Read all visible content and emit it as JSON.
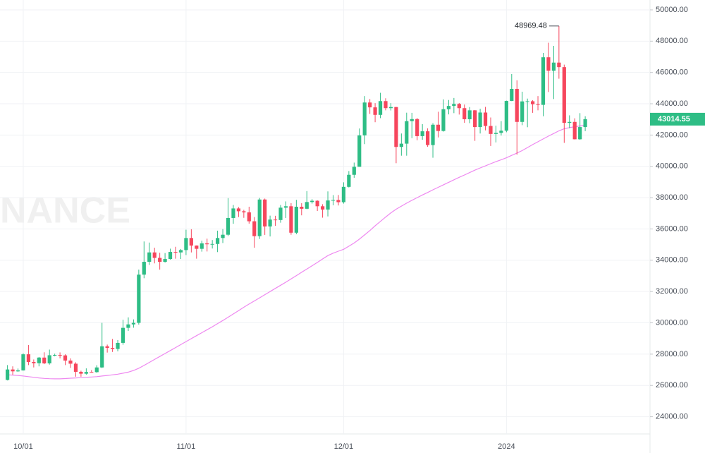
{
  "chart_data": {
    "type": "candlestick",
    "watermark": "NANCE",
    "categories": [
      null,
      null,
      null,
      "10/01",
      null,
      null,
      null,
      null,
      null,
      null,
      null,
      null,
      null,
      null,
      null,
      null,
      null,
      null,
      null,
      null,
      null,
      null,
      null,
      null,
      null,
      null,
      null,
      null,
      null,
      null,
      null,
      null,
      null,
      null,
      "11/01",
      null,
      null,
      null,
      null,
      null,
      null,
      null,
      null,
      null,
      null,
      null,
      null,
      null,
      null,
      null,
      null,
      null,
      null,
      null,
      null,
      null,
      null,
      null,
      null,
      null,
      null,
      null,
      null,
      null,
      "12/01",
      null,
      null,
      null,
      null,
      null,
      null,
      null,
      null,
      null,
      null,
      null,
      null,
      null,
      null,
      null,
      null,
      null,
      null,
      null,
      null,
      null,
      null,
      null,
      null,
      null,
      null,
      null,
      null,
      null,
      null,
      "2024",
      null,
      null,
      null,
      null,
      null,
      null,
      null,
      null,
      null,
      null,
      null,
      null,
      null,
      null,
      null
    ],
    "open": [
      26350,
      27020,
      26900,
      26960,
      27990,
      27500,
      27420,
      27780,
      27410,
      27930,
      27950,
      27920,
      27590,
      27390,
      26870,
      26750,
      26860,
      26850,
      27150,
      28500,
      28400,
      28330,
      28720,
      29680,
      29900,
      30000,
      33080,
      33900,
      34500,
      34150,
      33900,
      34080,
      34530,
      34500,
      34650,
      35420,
      34940,
      34730,
      35080,
      35020,
      35040,
      35420,
      35630,
      36700,
      37310,
      37130,
      37060,
      36490,
      35540,
      37880,
      36160,
      36600,
      36570,
      37360,
      37450,
      35760,
      37420,
      37290,
      37720,
      37800,
      37450,
      37240,
      37820,
      37850,
      37710,
      38690,
      39460,
      39970,
      41980,
      44080,
      43770,
      43290,
      44170,
      43720,
      43790,
      41240,
      41450,
      42890,
      43020,
      41930,
      42240,
      41360,
      42660,
      42260,
      43650,
      43860,
      43990,
      43720,
      43010,
      43580,
      42510,
      43440,
      42580,
      42070,
      42140,
      42280,
      44180,
      44950,
      42840,
      44150,
      44160,
      43970,
      43930,
      46970,
      46110,
      46630,
      46340,
      42780,
      42840,
      41730,
      42510
    ],
    "high": [
      27300,
      27220,
      27080,
      28050,
      28580,
      27660,
      27820,
      28120,
      28290,
      28030,
      28110,
      27990,
      27730,
      27480,
      26940,
      27090,
      26980,
      27290,
      30000,
      28610,
      28970,
      28900,
      30200,
      30350,
      30220,
      33400,
      35200,
      35130,
      34800,
      34480,
      34460,
      34740,
      34860,
      34720,
      35950,
      35980,
      34950,
      35250,
      35380,
      35290,
      35890,
      35990,
      37970,
      37530,
      37400,
      37220,
      37420,
      36760,
      37980,
      37940,
      36850,
      36840,
      37530,
      37760,
      37650,
      37860,
      37650,
      38420,
      37900,
      37830,
      37580,
      38400,
      38160,
      38170,
      38980,
      39700,
      40240,
      42420,
      44490,
      44300,
      44040,
      44700,
      44350,
      44040,
      43800,
      42100,
      43430,
      43420,
      43090,
      42700,
      42430,
      42760,
      43490,
      44280,
      44240,
      44370,
      44050,
      43950,
      43790,
      43600,
      43680,
      43800,
      43120,
      42600,
      42890,
      44200,
      45900,
      45500,
      44770,
      44330,
      44230,
      44490,
      47250,
      47900,
      47700,
      48969.48,
      46500,
      43260,
      43070,
      43400,
      43200
    ],
    "low": [
      26320,
      26680,
      26860,
      26950,
      27300,
      27150,
      27220,
      27360,
      27330,
      27860,
      27730,
      27300,
      27120,
      26560,
      26560,
      26690,
      26820,
      26810,
      27110,
      28100,
      28140,
      28180,
      28600,
      29480,
      29690,
      29890,
      32850,
      33700,
      33800,
      33400,
      33850,
      34040,
      34100,
      34080,
      34330,
      34500,
      34100,
      34550,
      34560,
      34750,
      34520,
      35100,
      35550,
      36330,
      36760,
      36710,
      36340,
      34800,
      35360,
      35620,
      35520,
      36200,
      36400,
      36700,
      35630,
      35660,
      36870,
      37260,
      37620,
      37150,
      36720,
      36800,
      37510,
      37500,
      37620,
      38650,
      39270,
      39970,
      41420,
      43350,
      42820,
      43080,
      43580,
      43570,
      40200,
      40680,
      40680,
      41800,
      41670,
      41700,
      41250,
      40550,
      41850,
      42220,
      43320,
      43400,
      43310,
      42780,
      42760,
      41630,
      42100,
      42300,
      41300,
      41530,
      41970,
      42180,
      44170,
      40750,
      42630,
      42500,
      43420,
      43580,
      43200,
      44750,
      44300,
      45600,
      41500,
      42440,
      41720,
      41700,
      42250
    ],
    "close": [
      27020,
      26900,
      26960,
      27990,
      27500,
      27420,
      27780,
      27410,
      27930,
      27950,
      27920,
      27590,
      27390,
      26870,
      26750,
      26860,
      26850,
      27150,
      28500,
      28400,
      28330,
      28720,
      29680,
      29900,
      30000,
      33080,
      33900,
      34500,
      34150,
      33900,
      34080,
      34530,
      34500,
      34650,
      35420,
      34940,
      34730,
      35080,
      35020,
      35040,
      35420,
      35630,
      36700,
      37310,
      37130,
      37060,
      36490,
      35540,
      37880,
      36160,
      36600,
      36570,
      37360,
      37450,
      35760,
      37420,
      37290,
      37720,
      37800,
      37450,
      37240,
      37820,
      37850,
      37710,
      38690,
      39460,
      39970,
      41980,
      44080,
      43770,
      43290,
      44170,
      43720,
      43790,
      41240,
      41450,
      42890,
      43020,
      41930,
      42240,
      41360,
      42660,
      42260,
      43650,
      43860,
      43990,
      43720,
      43010,
      43580,
      42510,
      43440,
      42580,
      42070,
      42140,
      42280,
      44180,
      44950,
      42840,
      44150,
      44160,
      43970,
      43930,
      46970,
      46110,
      46630,
      46340,
      42780,
      42840,
      41730,
      42510,
      43014.55
    ],
    "up_color": "#2ebd85",
    "down_color": "#f6465d",
    "ma_line": {
      "color": "#ee88f0",
      "values": [
        26680,
        26660,
        26640,
        26600,
        26560,
        26520,
        26480,
        26450,
        26430,
        26420,
        26420,
        26440,
        26460,
        26480,
        26500,
        26520,
        26540,
        26560,
        26600,
        26640,
        26680,
        26720,
        26780,
        26850,
        26960,
        27100,
        27280,
        27470,
        27660,
        27850,
        28040,
        28230,
        28420,
        28610,
        28800,
        28990,
        29180,
        29370,
        29560,
        29750,
        29950,
        30150,
        30360,
        30570,
        30780,
        31000,
        31200,
        31400,
        31600,
        31800,
        32000,
        32200,
        32400,
        32600,
        32810,
        33020,
        33230,
        33440,
        33650,
        33860,
        34080,
        34300,
        34450,
        34580,
        34700,
        34900,
        35100,
        35350,
        35620,
        35900,
        36200,
        36480,
        36760,
        37030,
        37260,
        37460,
        37650,
        37830,
        38000,
        38170,
        38330,
        38500,
        38660,
        38820,
        38980,
        39140,
        39300,
        39450,
        39600,
        39760,
        39900,
        40030,
        40170,
        40300,
        40420,
        40550,
        40700,
        40850,
        41010,
        41200,
        41390,
        41570,
        41750,
        41930,
        42100,
        42270,
        42400,
        42480,
        42530,
        42580,
        42630
      ]
    },
    "ylim": [
      22900,
      50630
    ],
    "yticks": [
      {
        "value": 24000,
        "label": "24000.00"
      },
      {
        "value": 26000,
        "label": "26000.00"
      },
      {
        "value": 28000,
        "label": "28000.00"
      },
      {
        "value": 30000,
        "label": "30000.00"
      },
      {
        "value": 32000,
        "label": "32000.00"
      },
      {
        "value": 34000,
        "label": "34000.00"
      },
      {
        "value": 36000,
        "label": "36000.00"
      },
      {
        "value": 38000,
        "label": "38000.00"
      },
      {
        "value": 40000,
        "label": "40000.00"
      },
      {
        "value": 42000,
        "label": "42000.00"
      },
      {
        "value": 44000,
        "label": "44000.00"
      },
      {
        "value": 46000,
        "label": "46000.00"
      },
      {
        "value": 48000,
        "label": "48000.00"
      },
      {
        "value": 50000,
        "label": "50000.00"
      }
    ],
    "grid": true
  }
}
